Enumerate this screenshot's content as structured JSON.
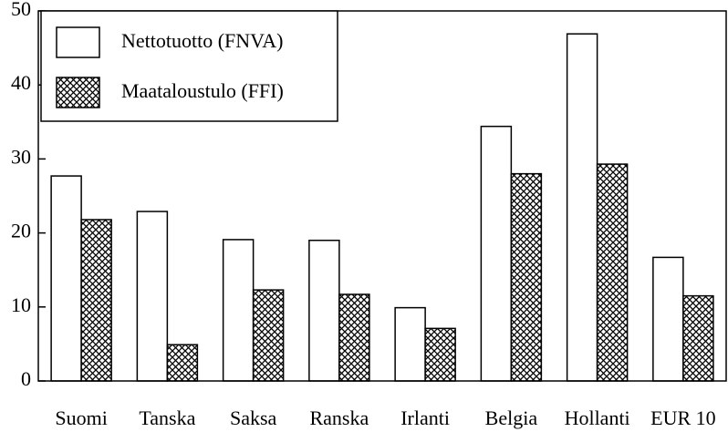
{
  "chart_data": {
    "type": "bar",
    "categories": [
      "Suomi",
      "Tanska",
      "Saksa",
      "Ranska",
      "Irlanti",
      "Belgia",
      "Hollanti",
      "EUR 10"
    ],
    "series": [
      {
        "name": "Nettotuotto (FNVA)",
        "color": "#ffffff",
        "values": [
          27.7,
          22.9,
          19.1,
          19.0,
          9.9,
          34.4,
          46.9,
          16.7
        ]
      },
      {
        "name": "Maataloustulo (FFI)",
        "color": "#000000",
        "values": [
          21.8,
          4.9,
          12.3,
          11.7,
          7.1,
          28.0,
          29.3,
          11.5
        ]
      }
    ],
    "ylim": [
      0,
      50
    ],
    "yticks": [
      0,
      10,
      20,
      30,
      40,
      50
    ],
    "legend": "upper left"
  }
}
